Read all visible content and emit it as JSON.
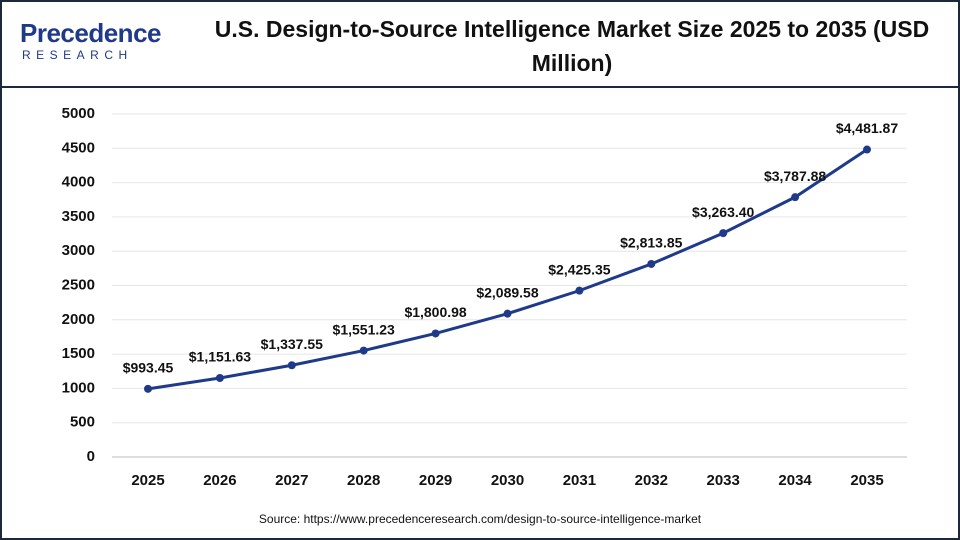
{
  "logo": {
    "name": "Precedence",
    "sub": "RESEARCH"
  },
  "chart_data": {
    "type": "line",
    "title": "U.S. Design-to-Source Intelligence Market Size 2025 to 2035 (USD Million)",
    "source": "Source: https://www.precedenceresearch.com/design-to-source-intelligence-market",
    "categories": [
      "2025",
      "2026",
      "2027",
      "2028",
      "2029",
      "2030",
      "2031",
      "2032",
      "2033",
      "2034",
      "2035"
    ],
    "values": [
      993.45,
      1151.63,
      1337.55,
      1551.23,
      1800.98,
      2089.58,
      2425.35,
      2813.85,
      3263.4,
      3787.88,
      4481.87
    ],
    "value_labels": [
      "$993.45",
      "$1,151.63",
      "$1,337.55",
      "$1,551.23",
      "$1,800.98",
      "$2,089.58",
      "$2,425.35",
      "$2,813.85",
      "$3,263.40",
      "$3,787.88",
      "$4,481.87"
    ],
    "color": "#1f3a8a",
    "ylim": [
      0,
      5000
    ],
    "yticks": [
      0,
      500,
      1000,
      1500,
      2000,
      2500,
      3000,
      3500,
      4000,
      4500,
      5000
    ],
    "grid": true
  }
}
